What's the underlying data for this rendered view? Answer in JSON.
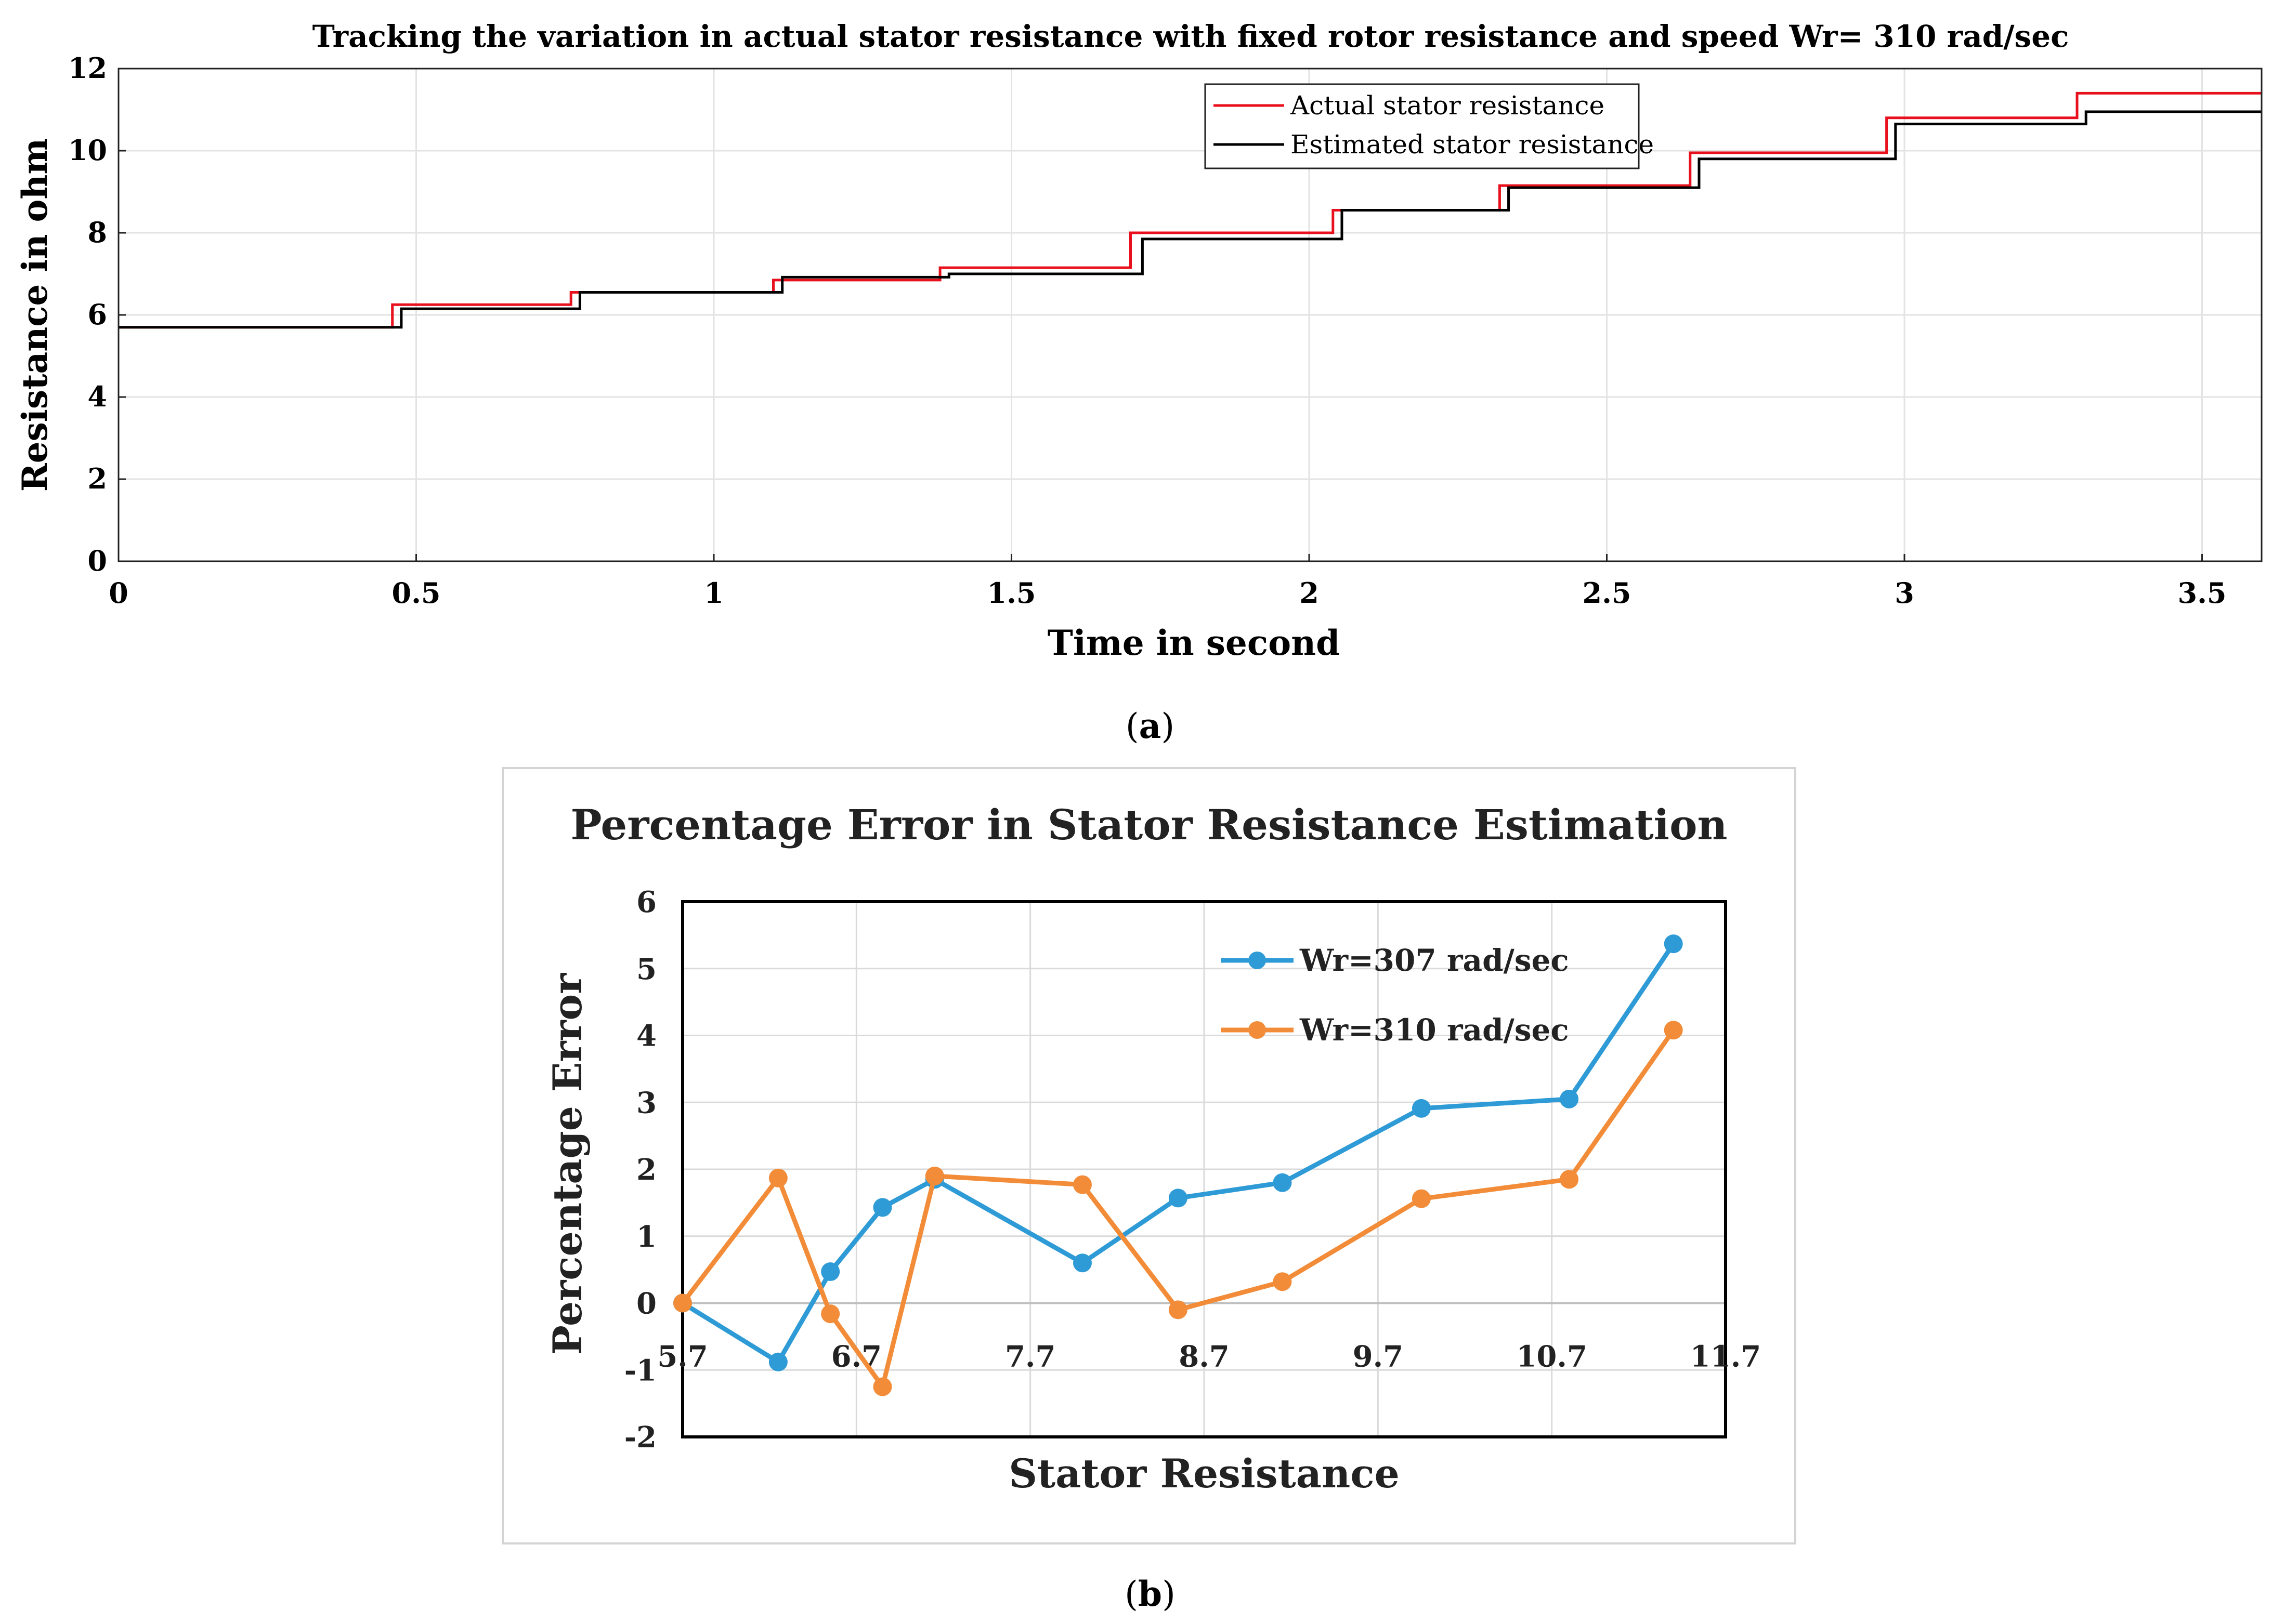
{
  "chart_data": [
    {
      "type": "line",
      "subplot_label": "(a)",
      "subplot_letter": "a",
      "title": "Tracking the variation in actual stator resistance with fixed rotor resistance and speed Wr= 310 rad/sec",
      "xlabel": "Time in second",
      "ylabel": "Resistance in ohm",
      "xlim": [
        0,
        3.6
      ],
      "ylim": [
        0,
        12
      ],
      "xticks": [
        0,
        0.5,
        1,
        1.5,
        2,
        2.5,
        3,
        3.5
      ],
      "xtick_labels": [
        "0",
        "0.5",
        "1",
        "1.5",
        "2",
        "2.5",
        "3",
        "3.5"
      ],
      "yticks": [
        0,
        2,
        4,
        6,
        8,
        10,
        12
      ],
      "ytick_labels": [
        "0",
        "2",
        "4",
        "6",
        "8",
        "10",
        "12"
      ],
      "grid": true,
      "legend_position": "top-right",
      "series": [
        {
          "name": "Actual stator resistance",
          "color": "#e8101c",
          "step": true,
          "x": [
            0,
            0.46,
            0.76,
            1.1,
            1.38,
            1.7,
            2.04,
            2.32,
            2.64,
            2.97,
            3.29,
            3.6
          ],
          "y": [
            5.7,
            6.25,
            6.55,
            6.85,
            7.15,
            8.0,
            8.55,
            9.15,
            9.95,
            10.8,
            11.4,
            11.4
          ]
        },
        {
          "name": "Estimated stator resistance",
          "color": "#000000",
          "step": true,
          "x": [
            0,
            0.475,
            0.775,
            1.115,
            1.395,
            1.72,
            2.055,
            2.335,
            2.655,
            2.985,
            3.305,
            3.6
          ],
          "y": [
            5.7,
            6.15,
            6.55,
            6.92,
            7.0,
            7.85,
            8.55,
            9.1,
            9.8,
            10.65,
            10.95,
            10.95
          ]
        }
      ]
    },
    {
      "type": "line",
      "subplot_label": "(b)",
      "subplot_letter": "b",
      "title": "Percentage Error in Stator Resistance Estimation",
      "xlabel": "Stator Resistance",
      "ylabel": "Percentage Error",
      "xlim": [
        5.7,
        11.7
      ],
      "ylim": [
        -2,
        6
      ],
      "xticks": [
        5.7,
        6.7,
        7.7,
        8.7,
        9.7,
        10.7,
        11.7
      ],
      "xtick_labels": [
        "5.7",
        "6.7",
        "7.7",
        "8.7",
        "9.7",
        "10.7",
        "11.7"
      ],
      "yticks": [
        -2,
        -1,
        0,
        1,
        2,
        3,
        4,
        5,
        6
      ],
      "ytick_labels": [
        "-2",
        "-1",
        "0",
        "1",
        "2",
        "3",
        "4",
        "5",
        "6"
      ],
      "grid": true,
      "legend_position": "top-right",
      "series": [
        {
          "name": "Wr=307 rad/sec",
          "color": "#2e9bd6",
          "x": [
            5.7,
            6.25,
            6.55,
            6.85,
            7.15,
            8.0,
            8.55,
            9.15,
            9.95,
            10.8,
            11.4
          ],
          "y": [
            0.0,
            -0.88,
            0.47,
            1.43,
            1.85,
            0.6,
            1.57,
            1.8,
            2.91,
            3.05,
            5.37
          ]
        },
        {
          "name": "Wr=310 rad/sec",
          "color": "#f28c38",
          "x": [
            5.7,
            6.25,
            6.55,
            6.85,
            7.15,
            8.0,
            8.55,
            9.15,
            9.95,
            10.8,
            11.4
          ],
          "y": [
            0.0,
            1.87,
            -0.16,
            -1.25,
            1.9,
            1.77,
            -0.1,
            0.32,
            1.56,
            1.85,
            4.08
          ]
        }
      ]
    }
  ]
}
